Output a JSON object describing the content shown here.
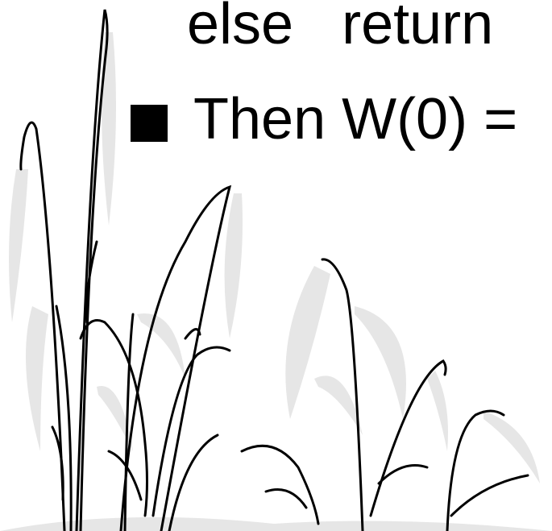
{
  "lines": [
    "else   return",
    "Then W(0) ="
  ]
}
